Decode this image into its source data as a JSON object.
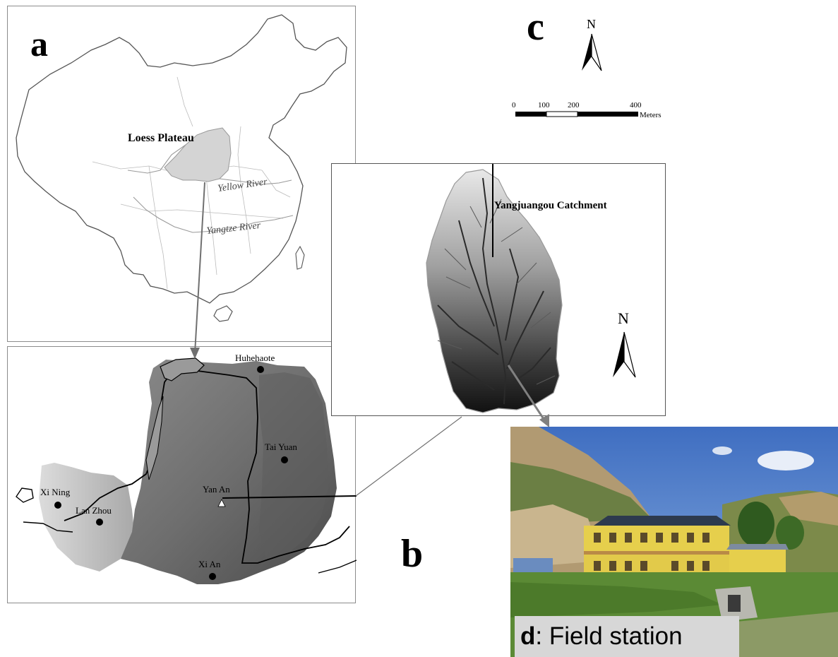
{
  "panels": {
    "a": {
      "letter": "a",
      "region_label": "Loess Plateau",
      "rivers": [
        "Yellow River",
        "Yangtze River"
      ]
    },
    "b": {
      "letter": "b",
      "cities": [
        "Huhehaote",
        "Tai Yuan",
        "Xi Ning",
        "Lan Zhou",
        "Yan An",
        "Xi An"
      ]
    },
    "c": {
      "letter": "c",
      "north_label": "N",
      "scale_ticks": [
        "0",
        "100",
        "200",
        "400"
      ],
      "scale_unit": "Meters",
      "catchment_label": "Yangjuangou Catchment",
      "inset_north_label": "N"
    },
    "d": {
      "caption_letter": "d",
      "caption_text": ": Field station"
    }
  },
  "colors": {
    "plateau_fill": "#d4d4d4",
    "leader_arrow": "#707070",
    "panel_border": "#808080"
  }
}
